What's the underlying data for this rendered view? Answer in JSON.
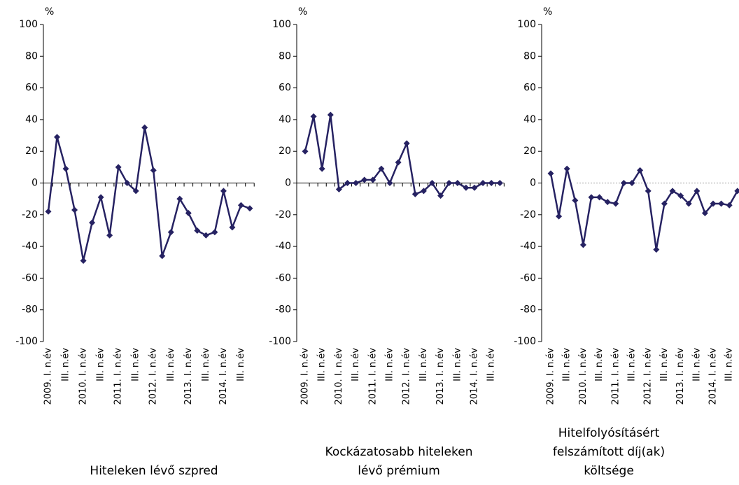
{
  "chart_data": [
    {
      "type": "line",
      "title": "Hiteleken lévő szpred",
      "y_label": "%",
      "categories": [
        "2009. I. n.év",
        null,
        "III. n.év",
        null,
        "2010. I. n.év",
        null,
        "III. n.év",
        null,
        "2011. I. n.év",
        null,
        "III. n.év",
        null,
        "2012. I. n.év",
        null,
        "III. n.év",
        null,
        "2013. I. n.év",
        null,
        "III. n.év",
        null,
        "2014. I. n.év",
        null,
        "III. n.év",
        null
      ],
      "series": [
        {
          "color": "#262262",
          "values": [
            -18,
            29,
            9,
            -17,
            -49,
            -25,
            -9,
            -33,
            10,
            0,
            -5,
            35,
            8,
            -46,
            -31,
            -10,
            -19,
            -30,
            -33,
            -31,
            -5,
            -28,
            -14,
            -16
          ]
        }
      ],
      "ylim": [
        -100,
        100
      ],
      "yticks": [
        -100,
        -80,
        -60,
        -40,
        -20,
        0,
        20,
        40,
        60,
        80,
        100
      ],
      "zero_line_style": "solid"
    },
    {
      "type": "line",
      "title": "Kockázatosabb hiteleken lévő prémium",
      "y_label": "%",
      "categories": [
        "2009. I. n.év",
        null,
        "III. n.év",
        null,
        "2010. I. n.év",
        null,
        "III. n.év",
        null,
        "2011. I. n.év",
        null,
        "III. n.év",
        null,
        "2012. I. n.év",
        null,
        "III. n.év",
        null,
        "2013. I. n.év",
        null,
        "III. n.év",
        null,
        "2014. I. n.év",
        null,
        "III. n.év",
        null
      ],
      "series": [
        {
          "color": "#262262",
          "values": [
            20,
            42,
            9,
            43,
            -4,
            0,
            0,
            2,
            2,
            9,
            0,
            13,
            25,
            -7,
            -5,
            0,
            -8,
            0,
            0,
            -3,
            -3,
            0,
            0,
            0
          ]
        }
      ],
      "ylim": [
        -100,
        100
      ],
      "yticks": [
        -100,
        -80,
        -60,
        -40,
        -20,
        0,
        20,
        40,
        60,
        80,
        100
      ],
      "zero_line_style": "solid"
    },
    {
      "type": "line",
      "title": "Hitelfolyósításért felszámított díj(ak) költsége",
      "y_label": "%",
      "categories": [
        "2009. I. n.év",
        null,
        "III. n.év",
        null,
        "2010. I. n.év",
        null,
        "III. n.év",
        null,
        "2011. I. n.év",
        null,
        "III. n.év",
        null,
        "2012. I. n.év",
        null,
        "III. n.év",
        null,
        "2013. I. n.év",
        null,
        "III. n.év",
        null,
        "2014. I. n.év",
        null,
        "III. n.év",
        null
      ],
      "series": [
        {
          "color": "#262262",
          "values": [
            6,
            -21,
            9,
            -11,
            -39,
            -9,
            -9,
            -12,
            -13,
            0,
            0,
            8,
            -5,
            -42,
            -13,
            -5,
            -8,
            -13,
            -5,
            -19,
            -13,
            -13,
            -14,
            -5
          ]
        }
      ],
      "ylim": [
        -100,
        100
      ],
      "yticks": [
        -100,
        -80,
        -60,
        -40,
        -20,
        0,
        20,
        40,
        60,
        80,
        100
      ],
      "zero_line_style": "dashed"
    }
  ]
}
